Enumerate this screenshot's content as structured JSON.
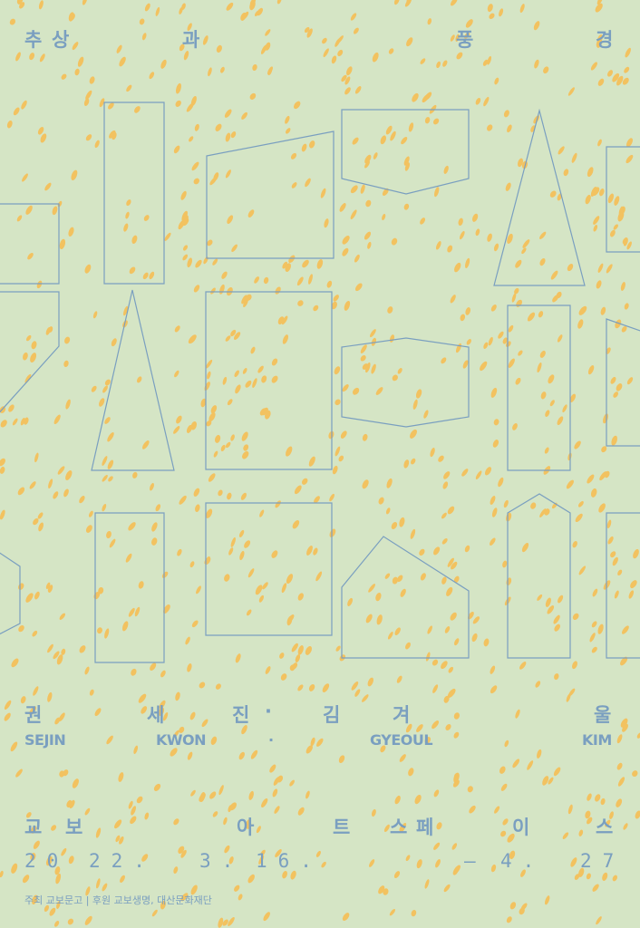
{
  "colors": {
    "background": "#d5e5c5",
    "text": "#7a9fc0",
    "dots": "#f2c260",
    "lines": "#7a9fc0"
  },
  "title": [
    "추",
    "상",
    "과",
    "풍",
    "경"
  ],
  "artists_ko": [
    "권",
    "세",
    "진",
    "·",
    "김",
    "겨",
    "울"
  ],
  "artists_en": [
    "SEJIN",
    "KWON",
    "·",
    "GYEOUL",
    "KIM"
  ],
  "venue": [
    "교",
    "보",
    "아",
    "트",
    "스",
    "페",
    "이",
    "스"
  ],
  "dates": [
    "20",
    "22.",
    "3.",
    "16.",
    "—",
    "4.",
    "27"
  ],
  "footer": "주최 교보문고 | 후원 교보생명, 대산문화재단"
}
